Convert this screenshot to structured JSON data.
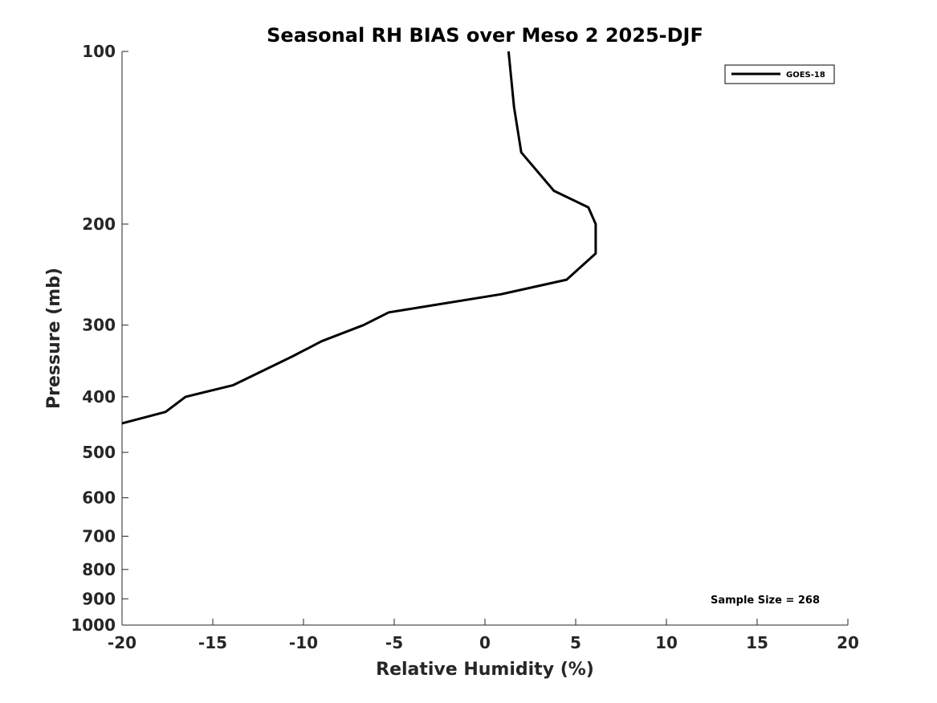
{
  "chart_data": {
    "type": "line",
    "title": "Seasonal RH BIAS over Meso 2  2025-DJF",
    "xlabel": "Relative Humidity (%)",
    "ylabel": "Pressure (mb)",
    "xlim": [
      -20,
      20
    ],
    "ylim": [
      100,
      1000
    ],
    "y_scale": "log",
    "y_reversed": true,
    "x_ticks": [
      -20,
      -15,
      -10,
      -5,
      0,
      5,
      10,
      15,
      20
    ],
    "x_tick_labels": [
      "-20",
      "-15",
      "-10",
      "-5",
      "0",
      "5",
      "10",
      "15",
      "20"
    ],
    "y_ticks": [
      100,
      200,
      300,
      400,
      500,
      600,
      700,
      800,
      900,
      1000
    ],
    "y_tick_labels": [
      "100",
      "200",
      "300",
      "400",
      "500",
      "600",
      "700",
      "800",
      "900",
      "1000"
    ],
    "grid": false,
    "legend_position": "top-right",
    "series": [
      {
        "name": "GOES-18",
        "color": "#000000",
        "points": [
          {
            "x": 1.3,
            "y": 100
          },
          {
            "x": 1.6,
            "y": 125
          },
          {
            "x": 2.0,
            "y": 150
          },
          {
            "x": 3.8,
            "y": 175
          },
          {
            "x": 5.7,
            "y": 187
          },
          {
            "x": 6.1,
            "y": 200
          },
          {
            "x": 6.1,
            "y": 225
          },
          {
            "x": 4.5,
            "y": 250
          },
          {
            "x": 0.9,
            "y": 265
          },
          {
            "x": -5.3,
            "y": 285
          },
          {
            "x": -6.7,
            "y": 300
          },
          {
            "x": -9.0,
            "y": 320
          },
          {
            "x": -10.6,
            "y": 340
          },
          {
            "x": -13.9,
            "y": 382
          },
          {
            "x": -16.5,
            "y": 400
          },
          {
            "x": -17.6,
            "y": 425
          },
          {
            "x": -20.0,
            "y": 445
          }
        ]
      }
    ],
    "annotations": [
      "Sample Size = 268"
    ]
  }
}
